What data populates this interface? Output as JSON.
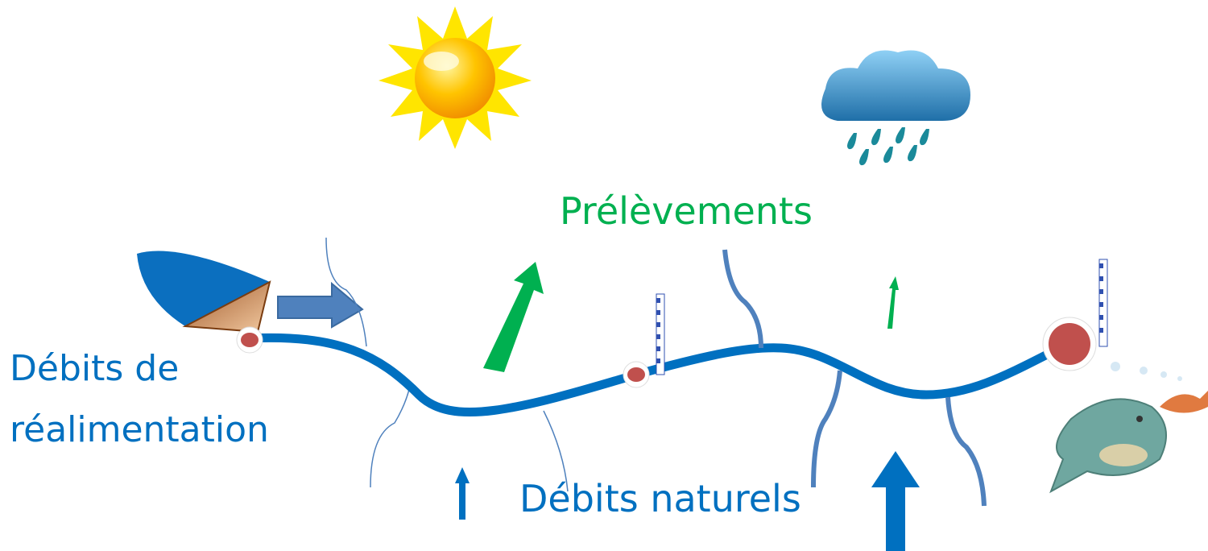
{
  "labels": {
    "realimentation": [
      "Débits de",
      "réalimentation"
    ],
    "prelevements": "Prélèvements",
    "naturels": "Débits naturels"
  }
}
